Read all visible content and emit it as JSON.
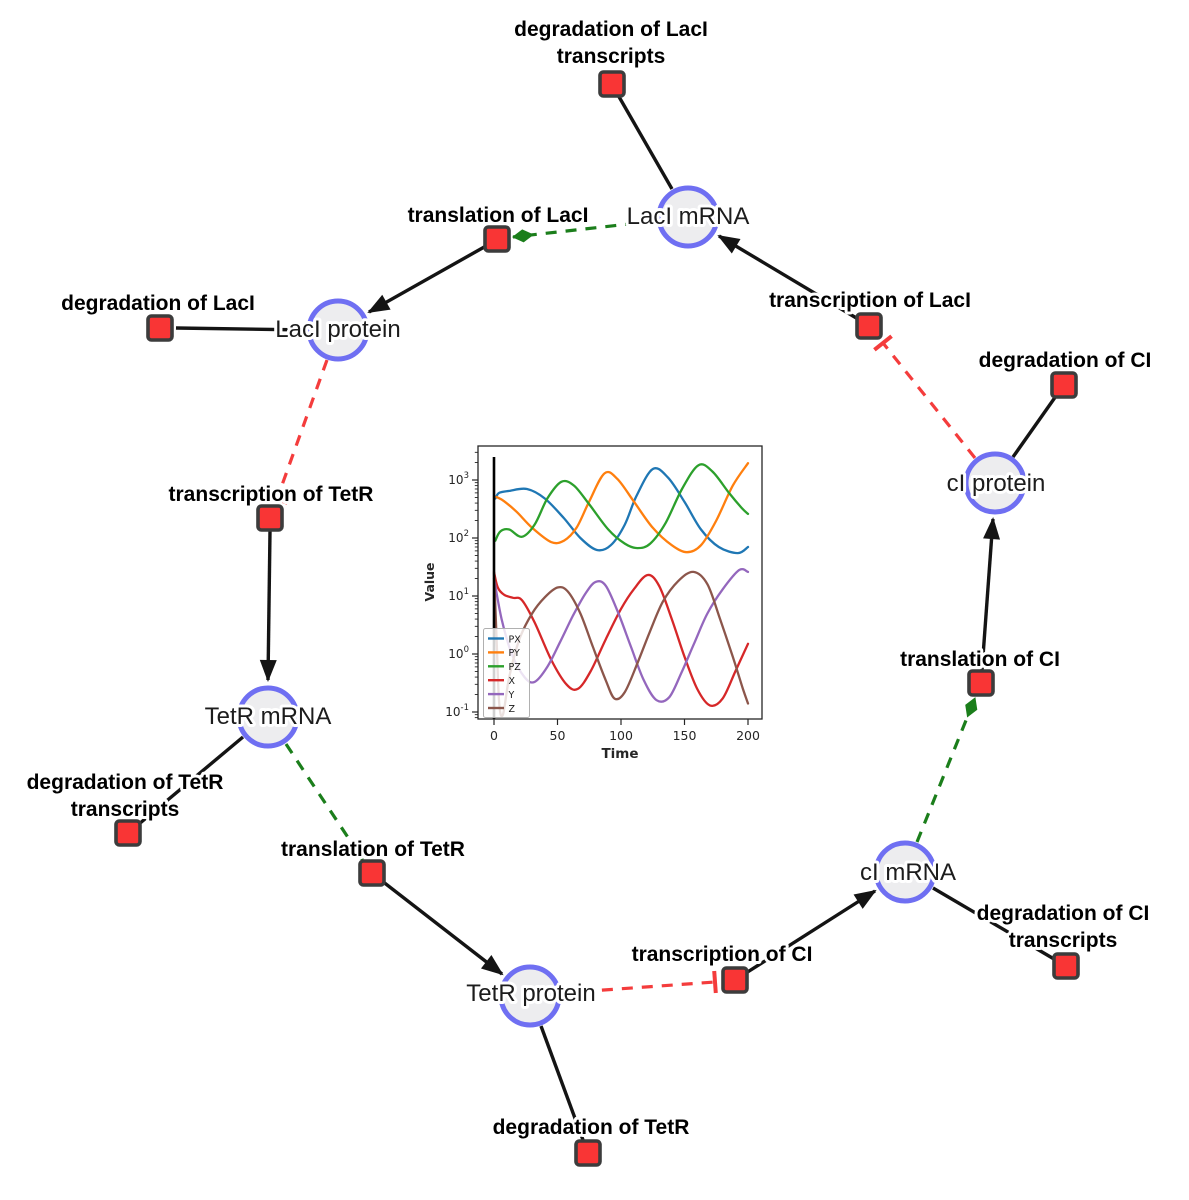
{
  "colors": {
    "species_fill": "#ededef",
    "species_stroke": "#6f6ff2",
    "reaction_fill": "#f93535",
    "reaction_stroke": "#3c3c3c",
    "edge_black": "#141414",
    "edge_modifier_green": "#1b7e1b",
    "edge_inhibition_red": "#f43c3c"
  },
  "network": {
    "species": [
      {
        "id": "laci-mrna",
        "label": "LacI mRNA"
      },
      {
        "id": "laci-protein",
        "label": "LacI protein"
      },
      {
        "id": "tetr-mrna",
        "label": "TetR mRNA"
      },
      {
        "id": "tetr-protein",
        "label": "TetR protein"
      },
      {
        "id": "ci-mrna",
        "label": "cI mRNA"
      },
      {
        "id": "ci-protein",
        "label": "cI protein"
      }
    ],
    "reactions": [
      {
        "id": "deg-laci-transcripts",
        "lines": [
          "degradation of LacI",
          "transcripts"
        ]
      },
      {
        "id": "translation-laci",
        "lines": [
          "translation of LacI"
        ]
      },
      {
        "id": "deg-laci",
        "lines": [
          "degradation of LacI"
        ]
      },
      {
        "id": "transcription-tetr",
        "lines": [
          "transcription of TetR"
        ]
      },
      {
        "id": "deg-tetr-transcripts",
        "lines": [
          "degradation of TetR",
          "transcripts"
        ]
      },
      {
        "id": "translation-tetr",
        "lines": [
          "translation of TetR"
        ]
      },
      {
        "id": "deg-tetr",
        "lines": [
          "degradation of TetR"
        ]
      },
      {
        "id": "transcription-ci",
        "lines": [
          "transcription of CI"
        ]
      },
      {
        "id": "deg-ci-transcripts",
        "lines": [
          "degradation of CI",
          "transcripts"
        ]
      },
      {
        "id": "translation-ci",
        "lines": [
          "translation of CI"
        ]
      },
      {
        "id": "transcription-laci",
        "lines": [
          "transcription of LacI"
        ]
      },
      {
        "id": "deg-ci",
        "lines": [
          "degradation of CI"
        ]
      }
    ],
    "edges": [
      {
        "from": "LacI mRNA",
        "to": "degradation of LacI transcripts",
        "type": "consumption"
      },
      {
        "from": "LacI mRNA",
        "to": "translation of LacI",
        "type": "modifier"
      },
      {
        "from": "translation of LacI",
        "to": "LacI protein",
        "type": "production"
      },
      {
        "from": "LacI protein",
        "to": "degradation of LacI",
        "type": "consumption"
      },
      {
        "from": "LacI protein",
        "to": "transcription of TetR",
        "type": "inhibition"
      },
      {
        "from": "transcription of TetR",
        "to": "TetR mRNA",
        "type": "production"
      },
      {
        "from": "TetR mRNA",
        "to": "degradation of TetR transcripts",
        "type": "consumption"
      },
      {
        "from": "TetR mRNA",
        "to": "translation of TetR",
        "type": "modifier"
      },
      {
        "from": "translation of TetR",
        "to": "TetR protein",
        "type": "production"
      },
      {
        "from": "TetR protein",
        "to": "degradation of TetR",
        "type": "consumption"
      },
      {
        "from": "TetR protein",
        "to": "transcription of CI",
        "type": "inhibition"
      },
      {
        "from": "transcription of CI",
        "to": "cI mRNA",
        "type": "production"
      },
      {
        "from": "cI mRNA",
        "to": "degradation of CI transcripts",
        "type": "consumption"
      },
      {
        "from": "cI mRNA",
        "to": "translation of CI",
        "type": "modifier"
      },
      {
        "from": "translation of CI",
        "to": "cI protein",
        "type": "production"
      },
      {
        "from": "cI protein",
        "to": "degradation of CI",
        "type": "consumption"
      },
      {
        "from": "cI protein",
        "to": "transcription of LacI",
        "type": "inhibition"
      },
      {
        "from": "transcription of LacI",
        "to": "LacI mRNA",
        "type": "production"
      }
    ]
  },
  "chart_data": {
    "type": "line",
    "title": "",
    "xlabel": "Time",
    "ylabel": "Value",
    "x_ticks": [
      0,
      50,
      100,
      150,
      200
    ],
    "y_scale": "log",
    "y_tick_exponents": [
      3,
      2,
      1,
      0,
      -1
    ],
    "xlim": [
      -12,
      211
    ],
    "ylim": [
      0.08,
      3800
    ],
    "grid": false,
    "legend_position": "lower left",
    "vline_x": 0,
    "series": [
      {
        "name": "PX",
        "color": "#1f77b4",
        "points": [
          [
            1,
            480
          ],
          [
            4,
            600
          ],
          [
            12,
            650
          ],
          [
            26,
            700
          ],
          [
            40,
            480
          ],
          [
            55,
            220
          ],
          [
            68,
            100
          ],
          [
            81,
            62
          ],
          [
            92,
            75
          ],
          [
            103,
            170
          ],
          [
            112,
            520
          ],
          [
            125,
            1550
          ],
          [
            137,
            1100
          ],
          [
            150,
            420
          ],
          [
            163,
            140
          ],
          [
            177,
            70
          ],
          [
            192,
            55
          ],
          [
            200,
            70
          ]
        ]
      },
      {
        "name": "PY",
        "color": "#ff7f0e",
        "points": [
          [
            2,
            510
          ],
          [
            8,
            430
          ],
          [
            18,
            280
          ],
          [
            30,
            150
          ],
          [
            45,
            85
          ],
          [
            55,
            90
          ],
          [
            65,
            150
          ],
          [
            75,
            430
          ],
          [
            87,
            1300
          ],
          [
            97,
            1050
          ],
          [
            110,
            430
          ],
          [
            125,
            150
          ],
          [
            140,
            75
          ],
          [
            152,
            57
          ],
          [
            163,
            75
          ],
          [
            175,
            200
          ],
          [
            188,
            800
          ],
          [
            200,
            1950
          ]
        ]
      },
      {
        "name": "PZ",
        "color": "#2ca02c",
        "points": [
          [
            1,
            90
          ],
          [
            5,
            130
          ],
          [
            12,
            140
          ],
          [
            22,
            105
          ],
          [
            32,
            170
          ],
          [
            42,
            480
          ],
          [
            53,
            930
          ],
          [
            63,
            800
          ],
          [
            75,
            380
          ],
          [
            90,
            140
          ],
          [
            103,
            80
          ],
          [
            113,
            67
          ],
          [
            123,
            80
          ],
          [
            135,
            180
          ],
          [
            148,
            700
          ],
          [
            161,
            1800
          ],
          [
            172,
            1400
          ],
          [
            185,
            600
          ],
          [
            195,
            330
          ],
          [
            200,
            260
          ]
        ]
      },
      {
        "name": "X",
        "color": "#d62728",
        "points": [
          [
            0,
            26
          ],
          [
            3,
            14
          ],
          [
            8,
            10.5
          ],
          [
            15,
            9.3
          ],
          [
            22,
            8.5
          ],
          [
            32,
            3.5
          ],
          [
            45,
            0.8
          ],
          [
            57,
            0.3
          ],
          [
            66,
            0.25
          ],
          [
            76,
            0.5
          ],
          [
            88,
            1.8
          ],
          [
            100,
            6
          ],
          [
            110,
            13
          ],
          [
            121,
            23
          ],
          [
            130,
            15
          ],
          [
            140,
            4
          ],
          [
            150,
            0.9
          ],
          [
            160,
            0.25
          ],
          [
            170,
            0.13
          ],
          [
            180,
            0.17
          ],
          [
            190,
            0.5
          ],
          [
            200,
            1.5
          ]
        ]
      },
      {
        "name": "Y",
        "color": "#9467bd",
        "points": [
          [
            0,
            20
          ],
          [
            6,
            4
          ],
          [
            14,
            1
          ],
          [
            24,
            0.4
          ],
          [
            32,
            0.33
          ],
          [
            42,
            0.6
          ],
          [
            52,
            1.6
          ],
          [
            62,
            4.5
          ],
          [
            72,
            11
          ],
          [
            80,
            17.5
          ],
          [
            88,
            15
          ],
          [
            98,
            5
          ],
          [
            108,
            1.3
          ],
          [
            118,
            0.35
          ],
          [
            128,
            0.16
          ],
          [
            138,
            0.18
          ],
          [
            148,
            0.5
          ],
          [
            158,
            1.6
          ],
          [
            168,
            5
          ],
          [
            180,
            13
          ],
          [
            193,
            28
          ],
          [
            200,
            26
          ]
        ]
      },
      {
        "name": "Z",
        "color": "#8c564b",
        "points": [
          [
            0,
            25
          ],
          [
            2,
            2
          ],
          [
            4,
            0.15
          ],
          [
            7,
            0.09
          ],
          [
            12,
            0.4
          ],
          [
            20,
            1.8
          ],
          [
            30,
            5
          ],
          [
            40,
            9.5
          ],
          [
            50,
            14
          ],
          [
            58,
            12
          ],
          [
            68,
            5
          ],
          [
            78,
            1.3
          ],
          [
            88,
            0.35
          ],
          [
            95,
            0.17
          ],
          [
            103,
            0.22
          ],
          [
            113,
            0.7
          ],
          [
            123,
            2.5
          ],
          [
            133,
            8
          ],
          [
            145,
            18
          ],
          [
            157,
            26
          ],
          [
            168,
            16
          ],
          [
            178,
            4
          ],
          [
            188,
            0.9
          ],
          [
            196,
            0.25
          ],
          [
            200,
            0.14
          ]
        ]
      }
    ]
  }
}
